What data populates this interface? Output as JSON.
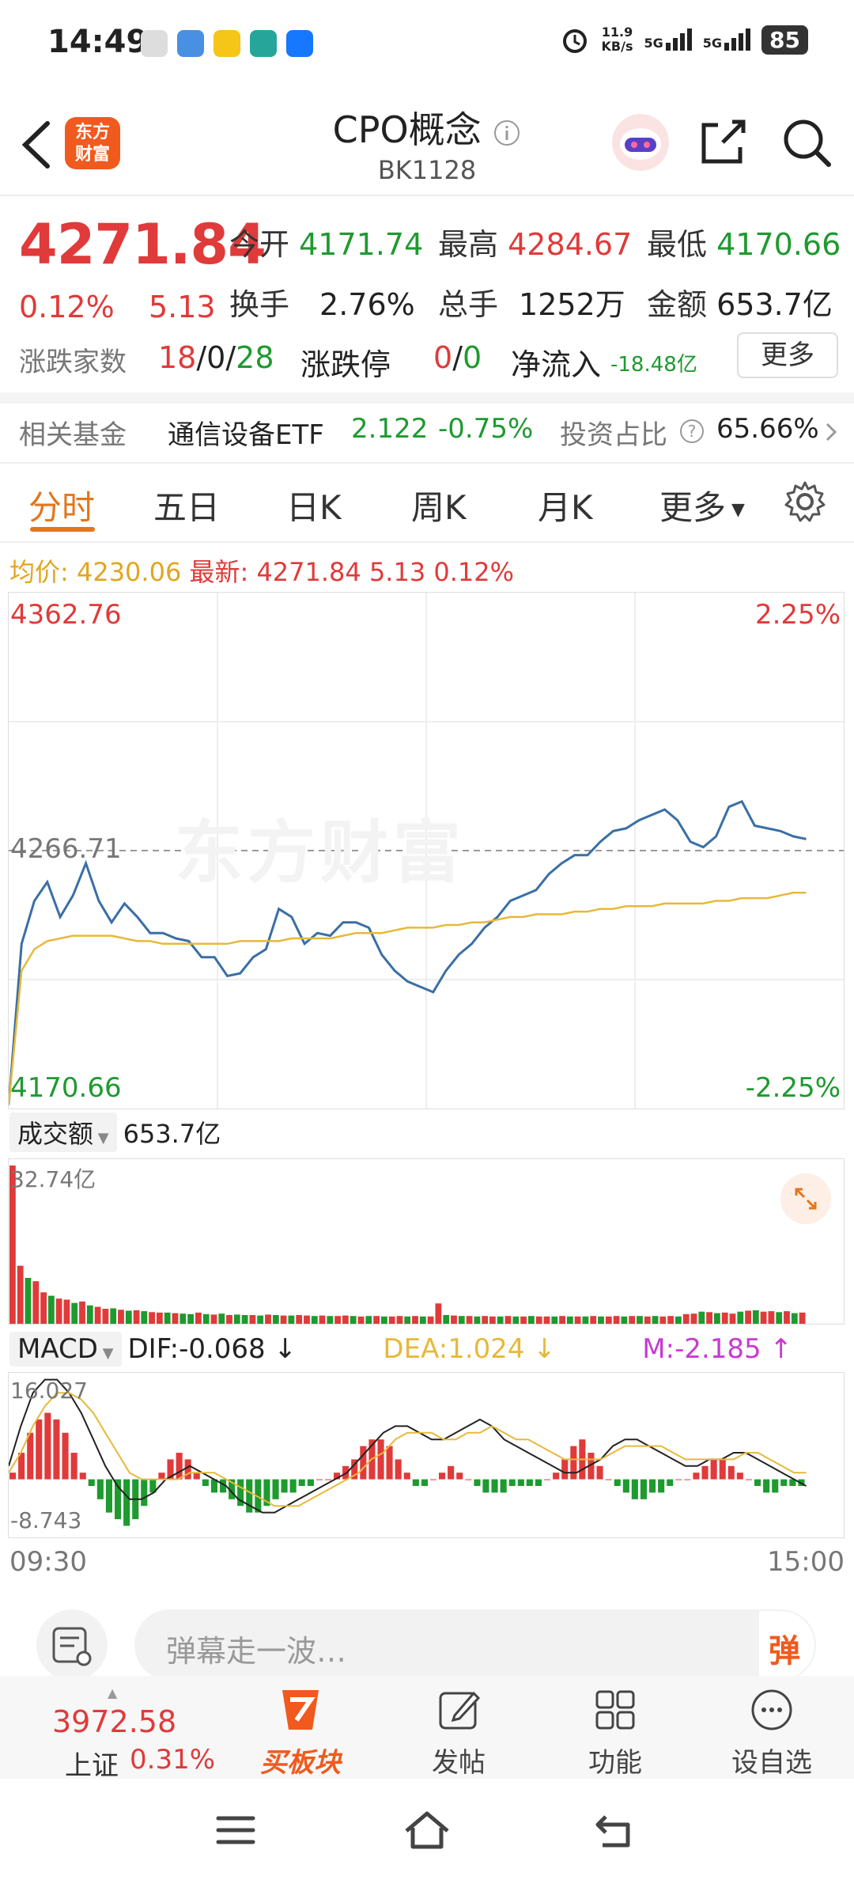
{
  "status_bar": {
    "time": "14:49",
    "net_speed_top": "11.9",
    "net_speed_unit": "KB/s",
    "sig1": "5G",
    "sig2": "5G",
    "battery": "85"
  },
  "header": {
    "logo_top": "东方",
    "logo_bottom": "财富",
    "title": "CPO概念",
    "code": "BK1128",
    "info_icon": "info-icon"
  },
  "quote": {
    "price": "4271.84",
    "change_pct": "0.12%",
    "change": "5.13",
    "open_label": "今开",
    "open": "4171.74",
    "high_label": "最高",
    "high": "4284.67",
    "low_label": "最低",
    "low": "4170.66",
    "turnover_label": "换手",
    "turnover": "2.76%",
    "volume_label": "总手",
    "volume": "1252万",
    "amount_label": "金额",
    "amount": "653.7亿",
    "updown_label": "涨跌家数",
    "up": "18",
    "flat": "0",
    "down": "28",
    "limit_label": "涨跌停",
    "limit_up": "0",
    "limit_down": "0",
    "netflow_label": "净流入",
    "netflow": "-18.48亿",
    "more": "更多"
  },
  "fund": {
    "label": "相关基金",
    "name": "通信设备ETF",
    "price": "2.122",
    "pct": "-0.75%",
    "ratio_label": "投资占比",
    "ratio": "65.66%"
  },
  "tabs": [
    "分时",
    "五日",
    "日K",
    "周K",
    "月K",
    "更多"
  ],
  "legend": {
    "avg_label": "均价:",
    "avg": "4230.06",
    "latest_label": "最新:",
    "latest": "4271.84",
    "chg": "5.13",
    "pct": "0.12%"
  },
  "watermark": "东方财富",
  "volume_panel": {
    "label": "成交额",
    "total": "653.7亿",
    "max": "32.74亿"
  },
  "macd_panel": {
    "label": "MACD",
    "dif": "DIF:-0.068 ↓",
    "dea": "DEA:1.024 ↓",
    "m": "M:-2.185 ↑",
    "max": "16.027",
    "min": "-8.743"
  },
  "time_axis": {
    "start": "09:30",
    "end": "15:00"
  },
  "danmaku_placeholder": "弹幕走一波…",
  "danmaku_btn": "弹",
  "bottom_nav": {
    "index_price": "3972.58",
    "index_name": "上证",
    "index_pct": "0.31%",
    "items": [
      "买板块",
      "发帖",
      "功能",
      "设自选"
    ]
  },
  "colors": {
    "up": "#e03a3a",
    "down": "#1e9a2f",
    "accent": "#e2761f",
    "price_line": "#3a6fa5",
    "avg_line": "#e7b93a"
  },
  "chart_data": [
    {
      "type": "line",
      "title": "分时",
      "yleft_max": "4362.76",
      "yleft_mid": "4266.71",
      "yleft_min": "4170.66",
      "yright_max": "2.25%",
      "yright_min": "-2.25%",
      "ylim": [
        4170.66,
        4362.76
      ],
      "xlabels": [
        "09:30",
        "15:00"
      ],
      "series": [
        {
          "name": "最新",
          "values": [
            4172,
            4232,
            4248,
            4255,
            4242,
            4250,
            4262,
            4248,
            4240,
            4247,
            4242,
            4236,
            4236,
            4234,
            4233,
            4227,
            4227,
            4220,
            4221,
            4227,
            4230,
            4245,
            4242,
            4232,
            4236,
            4235,
            4240,
            4240,
            4238,
            4228,
            4222,
            4218,
            4216,
            4214,
            4222,
            4228,
            4232,
            4238,
            4242,
            4248,
            4250,
            4252,
            4258,
            4262,
            4265,
            4265,
            4270,
            4274,
            4275,
            4278,
            4280,
            4282,
            4278,
            4270,
            4268,
            4272,
            4283,
            4285,
            4276,
            4275,
            4274,
            4272,
            4271
          ]
        },
        {
          "name": "均价",
          "values": [
            4172,
            4222,
            4230,
            4233,
            4234,
            4235,
            4235,
            4235,
            4235,
            4234,
            4233,
            4233,
            4232,
            4232,
            4232,
            4232,
            4232,
            4232,
            4233,
            4233,
            4233,
            4233,
            4234,
            4234,
            4234,
            4234,
            4235,
            4236,
            4236,
            4236,
            4237,
            4238,
            4238,
            4238,
            4239,
            4239,
            4240,
            4240,
            4241,
            4242,
            4242,
            4243,
            4243,
            4243,
            4244,
            4244,
            4245,
            4245,
            4246,
            4246,
            4246,
            4247,
            4247,
            4247,
            4247,
            4248,
            4248,
            4249,
            4249,
            4249,
            4250,
            4251,
            4251
          ]
        }
      ]
    },
    {
      "type": "bar",
      "title": "成交额",
      "ylim": [
        0,
        32.74
      ],
      "values": [
        32.74,
        12,
        9.5,
        8.8,
        6.5,
        5.8,
        5.2,
        5.0,
        4.3,
        4.6,
        3.8,
        3.5,
        3.1,
        3.2,
        2.9,
        2.7,
        2.8,
        2.6,
        2.4,
        2.3,
        2.3,
        2.2,
        2.1,
        2.0,
        2.3,
        2.0,
        1.9,
        2.1,
        1.8,
        1.9,
        1.8,
        1.8,
        1.7,
        1.9,
        1.8,
        1.7,
        1.7,
        1.8,
        1.7,
        1.6,
        1.7,
        1.6,
        1.6,
        1.7,
        1.6,
        1.5,
        1.6,
        1.6,
        1.5,
        1.5,
        1.6,
        1.5,
        1.6,
        1.5,
        1.5,
        4.2,
        1.8,
        1.7,
        1.6,
        1.6,
        1.5,
        1.6,
        1.5,
        1.5,
        1.6,
        1.5,
        1.5,
        1.6,
        1.5,
        1.5,
        1.5,
        1.6,
        1.5,
        1.5,
        1.5,
        1.6,
        1.5,
        1.5,
        1.6,
        1.5,
        1.6,
        1.6,
        1.5,
        1.6,
        1.5,
        1.6,
        1.5,
        2.0,
        2.1,
        2.5,
        2.4,
        2.2,
        2.3,
        2.1,
        2.5,
        2.7,
        2.8,
        2.5,
        2.6,
        2.4,
        2.6,
        2.2,
        2.3
      ],
      "up_flags": [
        1,
        1,
        0,
        1,
        1,
        0,
        1,
        1,
        0,
        1,
        0,
        1,
        1,
        0,
        1,
        0,
        1,
        0,
        1,
        1,
        0,
        1,
        0,
        0,
        1,
        0,
        1,
        0,
        1,
        0,
        0,
        1,
        0,
        1,
        0,
        1,
        0,
        1,
        1,
        0,
        1,
        0,
        1,
        1,
        0,
        1,
        0,
        1,
        0,
        1,
        1,
        0,
        1,
        0,
        1,
        1,
        0,
        1,
        0,
        1,
        0,
        1,
        1,
        0,
        1,
        0,
        1,
        0,
        1,
        1,
        0,
        1,
        0,
        1,
        0,
        1,
        0,
        1,
        1,
        0,
        1,
        0,
        1,
        0,
        1,
        1,
        0,
        1,
        1,
        0,
        1,
        0,
        1,
        1,
        0,
        1,
        0,
        1,
        1,
        0,
        1,
        0,
        1
      ]
    },
    {
      "type": "bar",
      "title": "MACD",
      "ylim": [
        -8.743,
        16.027
      ],
      "hist": [
        1,
        4,
        7,
        9,
        10,
        9,
        7,
        4,
        1,
        -1,
        -3,
        -5,
        -6,
        -7,
        -6,
        -4,
        -2,
        1,
        3,
        4,
        3,
        1,
        -1,
        -2,
        -2,
        -3,
        -4,
        -5,
        -5,
        -4,
        -3,
        -2,
        -2,
        -1,
        -1,
        0,
        0,
        1,
        2,
        3,
        5,
        6,
        6,
        5,
        3,
        1,
        -1,
        -1,
        0,
        1,
        2,
        1,
        0,
        -1,
        -2,
        -2,
        -2,
        -1,
        -1,
        -1,
        -1,
        0,
        1,
        3,
        5,
        6,
        4,
        2,
        0,
        -1,
        -2,
        -3,
        -3,
        -2,
        -2,
        -1,
        0,
        0,
        1,
        2,
        3,
        3,
        2,
        1,
        0,
        -1,
        -2,
        -2,
        -1,
        -1,
        -1
      ],
      "series": [
        {
          "name": "DIF",
          "values": [
            2,
            8,
            13,
            15,
            15,
            13,
            10,
            6,
            2,
            -1,
            -3,
            -3,
            -2,
            0,
            1,
            2,
            1,
            0,
            -1,
            -3,
            -4,
            -5,
            -5,
            -4,
            -3,
            -2,
            -1,
            0,
            1,
            3,
            5,
            7,
            8,
            8,
            7,
            6,
            6,
            7,
            8,
            9,
            8,
            6,
            5,
            4,
            3,
            2,
            1,
            1,
            2,
            3,
            5,
            6,
            6,
            5,
            4,
            3,
            2,
            2,
            3,
            3,
            4,
            4,
            3,
            2,
            1,
            0,
            -1
          ]
        },
        {
          "name": "DEA",
          "values": [
            1,
            4,
            8,
            11,
            13,
            13,
            12,
            10,
            7,
            4,
            1,
            0,
            0,
            0,
            0,
            1,
            1,
            1,
            0,
            -1,
            -2,
            -3,
            -4,
            -4,
            -4,
            -3,
            -2,
            -1,
            0,
            1,
            3,
            4,
            6,
            7,
            7,
            7,
            6,
            6,
            7,
            7,
            8,
            7,
            6,
            6,
            5,
            4,
            3,
            3,
            3,
            3,
            4,
            5,
            5,
            5,
            5,
            4,
            3,
            3,
            3,
            3,
            3,
            4,
            4,
            3,
            2,
            1,
            1
          ]
        }
      ]
    }
  ]
}
